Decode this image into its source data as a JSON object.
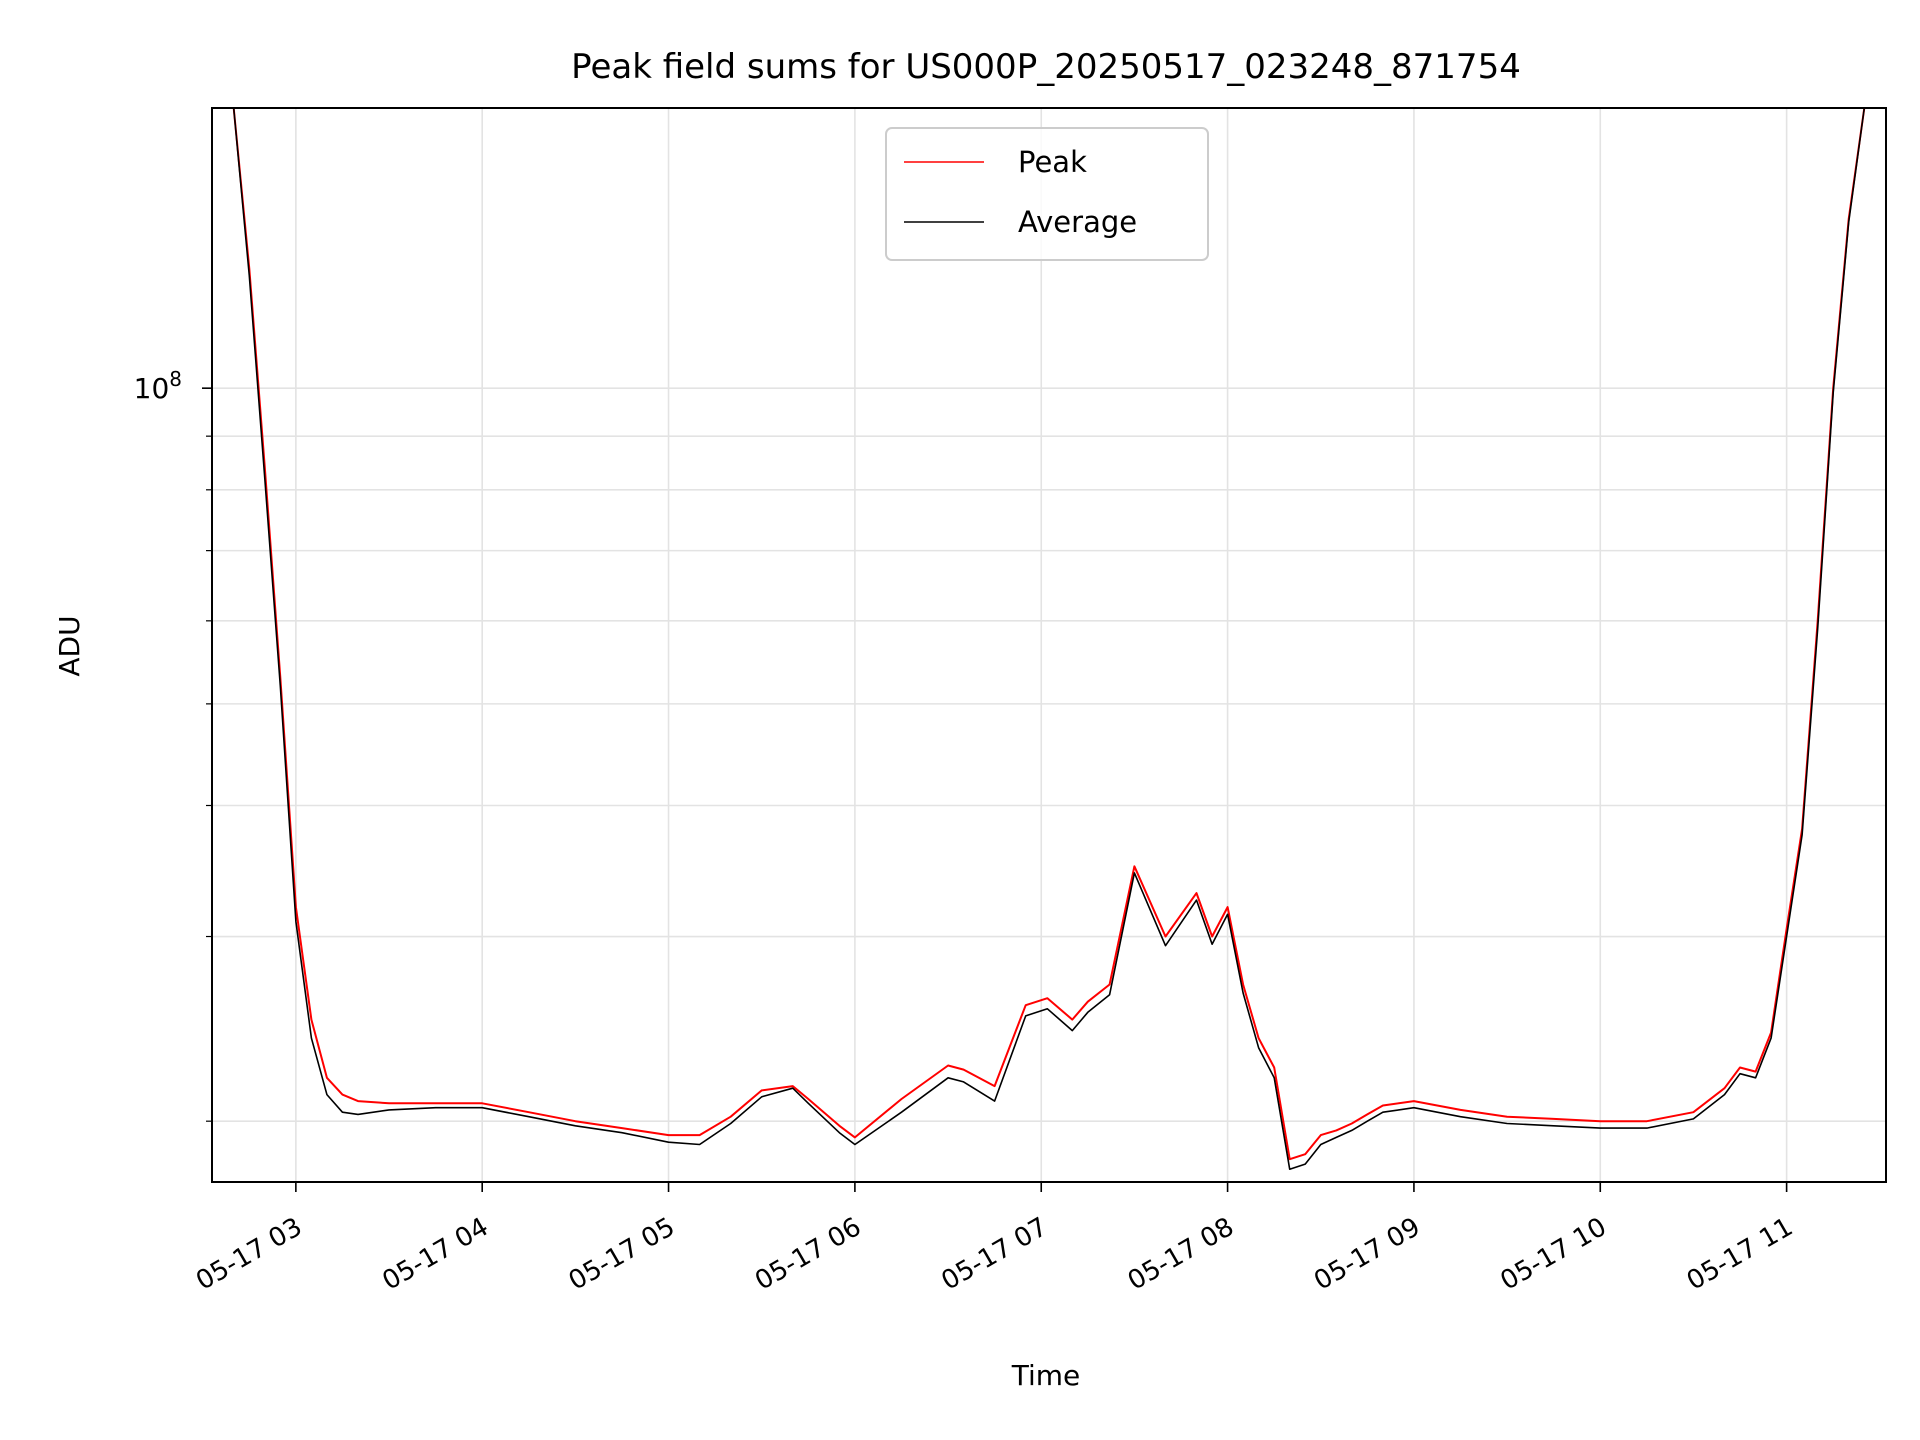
{
  "chart_data": {
    "type": "line",
    "title": "Peak field sums for US000P_20250517_023248_871754",
    "xlabel": "Time",
    "ylabel": "ADU",
    "yscale": "log",
    "grid": true,
    "legend_position": "top-center",
    "xlim": [
      "2025-05-17T02:33",
      "2025-05-17T11:32"
    ],
    "ylim": [
      17500000,
      185000000
    ],
    "x_ticks": [
      {
        "t": "2025-05-17T03:00",
        "label": "05-17 03"
      },
      {
        "t": "2025-05-17T04:00",
        "label": "05-17 04"
      },
      {
        "t": "2025-05-17T05:00",
        "label": "05-17 05"
      },
      {
        "t": "2025-05-17T06:00",
        "label": "05-17 06"
      },
      {
        "t": "2025-05-17T07:00",
        "label": "05-17 07"
      },
      {
        "t": "2025-05-17T08:00",
        "label": "05-17 08"
      },
      {
        "t": "2025-05-17T09:00",
        "label": "05-17 09"
      },
      {
        "t": "2025-05-17T10:00",
        "label": "05-17 10"
      },
      {
        "t": "2025-05-17T11:00",
        "label": "05-17 11"
      }
    ],
    "y_major_ticks": [
      {
        "value": 100000000,
        "base": "10",
        "exp": "8"
      }
    ],
    "series": [
      {
        "name": "Peak",
        "color": "#ff0000",
        "x": [
          "2025-05-17T02:40",
          "2025-05-17T02:45",
          "2025-05-17T02:50",
          "2025-05-17T02:55",
          "2025-05-17T03:00",
          "2025-05-17T03:05",
          "2025-05-17T03:10",
          "2025-05-17T03:15",
          "2025-05-17T03:20",
          "2025-05-17T03:30",
          "2025-05-17T03:45",
          "2025-05-17T04:00",
          "2025-05-17T04:15",
          "2025-05-17T04:30",
          "2025-05-17T04:45",
          "2025-05-17T05:00",
          "2025-05-17T05:10",
          "2025-05-17T05:20",
          "2025-05-17T05:30",
          "2025-05-17T05:40",
          "2025-05-17T05:45",
          "2025-05-17T05:55",
          "2025-05-17T06:00",
          "2025-05-17T06:15",
          "2025-05-17T06:30",
          "2025-05-17T06:35",
          "2025-05-17T06:45",
          "2025-05-17T06:55",
          "2025-05-17T07:02",
          "2025-05-17T07:10",
          "2025-05-17T07:15",
          "2025-05-17T07:22",
          "2025-05-17T07:30",
          "2025-05-17T07:40",
          "2025-05-17T07:50",
          "2025-05-17T07:55",
          "2025-05-17T08:00",
          "2025-05-17T08:05",
          "2025-05-17T08:10",
          "2025-05-17T08:15",
          "2025-05-17T08:20",
          "2025-05-17T08:25",
          "2025-05-17T08:30",
          "2025-05-17T08:35",
          "2025-05-17T08:40",
          "2025-05-17T08:45",
          "2025-05-17T08:50",
          "2025-05-17T09:00",
          "2025-05-17T09:15",
          "2025-05-17T09:30",
          "2025-05-17T09:45",
          "2025-05-17T10:00",
          "2025-05-17T10:15",
          "2025-05-17T10:30",
          "2025-05-17T10:40",
          "2025-05-17T10:45",
          "2025-05-17T10:50",
          "2025-05-17T10:55",
          "2025-05-17T11:00",
          "2025-05-17T11:05",
          "2025-05-17T11:10",
          "2025-05-17T11:15",
          "2025-05-17T11:20",
          "2025-05-17T11:25"
        ],
        "y": [
          185000000,
          130000000,
          84000000,
          53000000,
          32000000,
          25000000,
          22000000,
          21200000,
          20900000,
          20800000,
          20800000,
          20800000,
          20400000,
          20000000,
          19700000,
          19400000,
          19400000,
          20200000,
          21400000,
          21600000,
          21000000,
          19800000,
          19300000,
          21000000,
          22600000,
          22400000,
          21600000,
          25800000,
          26200000,
          25000000,
          26000000,
          27000000,
          35000000,
          30000000,
          33000000,
          30000000,
          32000000,
          27000000,
          24000000,
          22500000,
          18400000,
          18600000,
          19400000,
          19600000,
          19900000,
          20300000,
          20700000,
          20900000,
          20500000,
          20200000,
          20100000,
          20000000,
          20000000,
          20400000,
          21500000,
          22500000,
          22300000,
          24300000,
          30500000,
          38000000,
          60000000,
          100000000,
          145000000,
          185000000
        ]
      },
      {
        "name": "Average",
        "color": "#000000",
        "x": [
          "2025-05-17T02:40",
          "2025-05-17T02:45",
          "2025-05-17T02:50",
          "2025-05-17T02:55",
          "2025-05-17T03:00",
          "2025-05-17T03:05",
          "2025-05-17T03:10",
          "2025-05-17T03:15",
          "2025-05-17T03:20",
          "2025-05-17T03:30",
          "2025-05-17T03:45",
          "2025-05-17T04:00",
          "2025-05-17T04:15",
          "2025-05-17T04:30",
          "2025-05-17T04:45",
          "2025-05-17T05:00",
          "2025-05-17T05:10",
          "2025-05-17T05:20",
          "2025-05-17T05:30",
          "2025-05-17T05:40",
          "2025-05-17T05:45",
          "2025-05-17T05:55",
          "2025-05-17T06:00",
          "2025-05-17T06:15",
          "2025-05-17T06:30",
          "2025-05-17T06:35",
          "2025-05-17T06:45",
          "2025-05-17T06:55",
          "2025-05-17T07:02",
          "2025-05-17T07:10",
          "2025-05-17T07:15",
          "2025-05-17T07:22",
          "2025-05-17T07:30",
          "2025-05-17T07:40",
          "2025-05-17T07:50",
          "2025-05-17T07:55",
          "2025-05-17T08:00",
          "2025-05-17T08:05",
          "2025-05-17T08:10",
          "2025-05-17T08:15",
          "2025-05-17T08:20",
          "2025-05-17T08:25",
          "2025-05-17T08:30",
          "2025-05-17T08:35",
          "2025-05-17T08:40",
          "2025-05-17T08:45",
          "2025-05-17T08:50",
          "2025-05-17T09:00",
          "2025-05-17T09:15",
          "2025-05-17T09:30",
          "2025-05-17T09:45",
          "2025-05-17T10:00",
          "2025-05-17T10:15",
          "2025-05-17T10:30",
          "2025-05-17T10:40",
          "2025-05-17T10:45",
          "2025-05-17T10:50",
          "2025-05-17T10:55",
          "2025-05-17T11:00",
          "2025-05-17T11:05",
          "2025-05-17T11:10",
          "2025-05-17T11:15",
          "2025-05-17T11:20",
          "2025-05-17T11:25"
        ],
        "y": [
          185000000,
          128000000,
          82000000,
          52000000,
          31000000,
          24000000,
          21200000,
          20400000,
          20300000,
          20500000,
          20600000,
          20600000,
          20200000,
          19800000,
          19500000,
          19100000,
          19000000,
          19900000,
          21100000,
          21500000,
          20800000,
          19500000,
          19000000,
          20400000,
          22000000,
          21800000,
          20900000,
          25200000,
          25600000,
          24400000,
          25400000,
          26400000,
          34500000,
          29400000,
          32500000,
          29500000,
          31500000,
          26500000,
          23500000,
          22000000,
          18000000,
          18200000,
          19000000,
          19300000,
          19600000,
          20000000,
          20400000,
          20600000,
          20200000,
          19900000,
          19800000,
          19700000,
          19700000,
          20100000,
          21200000,
          22200000,
          22000000,
          24000000,
          30000000,
          37500000,
          59000000,
          99000000,
          144000000,
          185000000
        ]
      }
    ]
  }
}
